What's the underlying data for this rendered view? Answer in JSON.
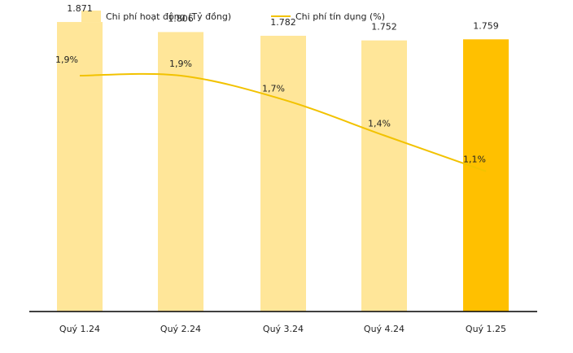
{
  "chart_data": {
    "type": "bar",
    "categories": [
      "Quý 1.24",
      "Quý 2.24",
      "Quý 3.24",
      "Quý 4.24",
      "Quý 1.25"
    ],
    "series": [
      {
        "name": "Chi phí hoạt động (Tỷ đồng)",
        "type": "bar",
        "values": [
          1871,
          1806,
          1782,
          1752,
          1759
        ],
        "labels": [
          "1.871",
          "1.806",
          "1.782",
          "1.752",
          "1.759"
        ],
        "color": "#FFE699",
        "highlight_color": "#FFC000",
        "highlight_index": 4
      },
      {
        "name": "Chi phí tín dụng (%)",
        "type": "line",
        "values": [
          1.9,
          1.9,
          1.7,
          1.4,
          1.1
        ],
        "labels": [
          "1,9%",
          "1,9%",
          "1,7%",
          "1,4%",
          "1,1%"
        ],
        "color": "#F2C200"
      }
    ],
    "legend": "top-left",
    "grid": false,
    "axis_color": "#000000"
  }
}
